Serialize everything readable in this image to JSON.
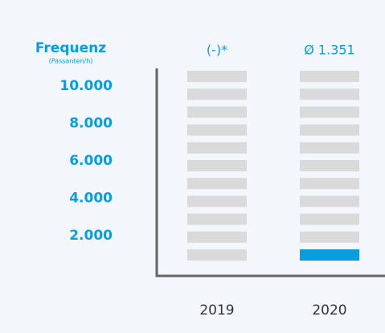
{
  "chart_data": {
    "type": "bar",
    "y_label": "Frequenz",
    "y_sublabel": "(Passanten/h)",
    "categories": [
      "2019",
      "2020"
    ],
    "values": [
      null,
      1351
    ],
    "value_labels": [
      "(-)*",
      "Ø 1.351"
    ],
    "color": "#0a9ddb",
    "background_color": "#dadada",
    "ylim": [
      0,
      10000
    ],
    "yticks": [
      {
        "value": 2000,
        "label": "2.000"
      },
      {
        "value": 4000,
        "label": "4.000"
      },
      {
        "value": 6000,
        "label": "6.000"
      },
      {
        "value": 8000,
        "label": "8.000"
      },
      {
        "value": 10000,
        "label": "10.000"
      }
    ]
  }
}
